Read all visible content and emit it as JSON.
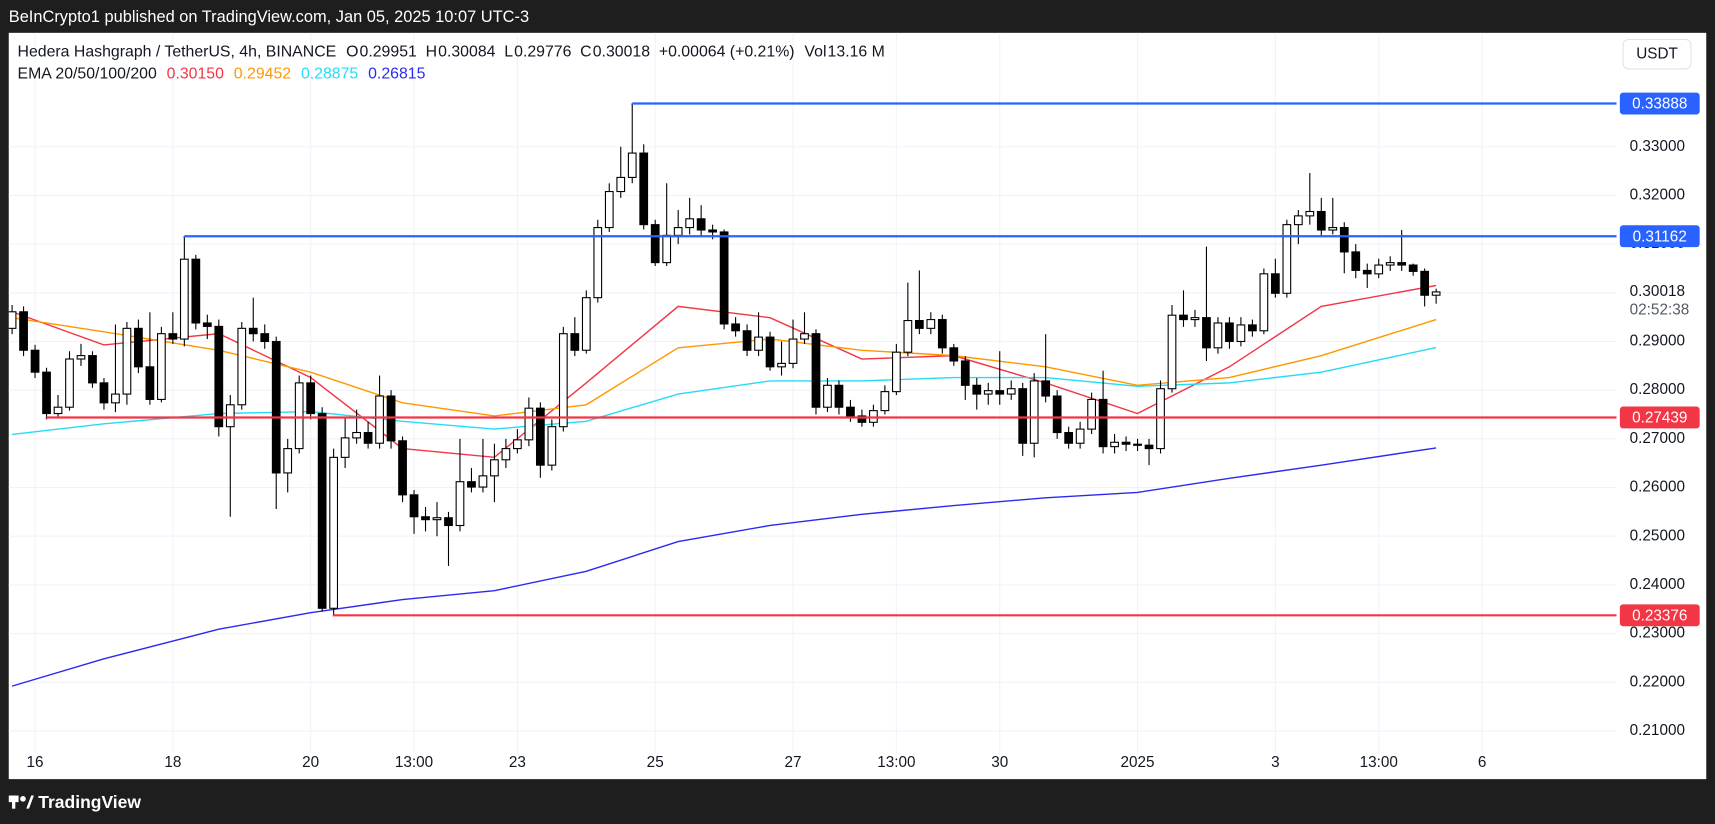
{
  "header": {
    "published": "BeInCrypto1 published on TradingView.com, Jan 05, 2025 10:07 UTC-3"
  },
  "chart_data": {
    "type": "candlestick",
    "title": "Hedera Hashgraph / TetherUS, 4h, BINANCE",
    "ohlc_letters": [
      "O",
      "H",
      "L",
      "C"
    ],
    "change": "+0.00064 (+0.21%)",
    "volume_letter": "Vol",
    "volume": "13.16 M",
    "indicator_title": "EMA 20/50/100/200",
    "currency": "USDT",
    "countdown": "02:52:38",
    "up_color": "#ffffff",
    "down_color": "#000000",
    "x": [
      -2,
      -1,
      0,
      1,
      2,
      3,
      4,
      5,
      6,
      7,
      8,
      9,
      10,
      11,
      12,
      13,
      14,
      15,
      16,
      17,
      18,
      19,
      20,
      21,
      22,
      23,
      24,
      25,
      26,
      27,
      28,
      29,
      30,
      31,
      32,
      33,
      34,
      35,
      36,
      37,
      38,
      39,
      40,
      41,
      42,
      43,
      44,
      45,
      46,
      47,
      48,
      49,
      50,
      51,
      52,
      53,
      54,
      55,
      56,
      57,
      58,
      59,
      60,
      61,
      62,
      63,
      64,
      65,
      66,
      67,
      68,
      69,
      70,
      71,
      72,
      73,
      74,
      75,
      76,
      77,
      78,
      79,
      80,
      81,
      82,
      83,
      84,
      85,
      86,
      87,
      88,
      89,
      90,
      91,
      92,
      93,
      94,
      95,
      96,
      97,
      98,
      99,
      100,
      101,
      102,
      103,
      104,
      105,
      106,
      107,
      108,
      109,
      110,
      111,
      112,
      113,
      114,
      115,
      116,
      117,
      118,
      119,
      120,
      121,
      122
    ],
    "open": [
      0.2927,
      0.2961,
      0.2882,
      0.2837,
      0.2752,
      0.2765,
      0.2864,
      0.2871,
      0.2815,
      0.2774,
      0.2792,
      0.2927,
      0.2848,
      0.2781,
      0.2916,
      0.2905,
      0.3069,
      0.2938,
      0.2931,
      0.2725,
      0.277,
      0.2927,
      0.2916,
      0.29,
      0.263,
      0.268,
      0.2815,
      0.2752,
      0.2352,
      0.2662,
      0.2702,
      0.2713,
      0.2691,
      0.2788,
      0.2696,
      0.2585,
      0.254,
      0.2534,
      0.2538,
      0.2522,
      0.2612,
      0.2601,
      0.2624,
      0.2657,
      0.268,
      0.2698,
      0.2763,
      0.2646,
      0.2725,
      0.2916,
      0.2882,
      0.299,
      0.3134,
      0.3208,
      0.3237,
      0.3287,
      0.314,
      0.3062,
      0.3118,
      0.3134,
      0.3152,
      0.3129,
      0.3125,
      0.2936,
      0.2922,
      0.2882,
      0.2909,
      0.2848,
      0.2855,
      0.2905,
      0.2916,
      0.2765,
      0.281,
      0.2765,
      0.2747,
      0.2734,
      0.2758,
      0.2797,
      0.2878,
      0.2943,
      0.2927,
      0.2945,
      0.2887,
      0.286,
      0.281,
      0.2792,
      0.2799,
      0.2792,
      0.2803,
      0.2691,
      0.2819,
      0.2788,
      0.2713,
      0.2691,
      0.272,
      0.2781,
      0.2684,
      0.2693,
      0.2689,
      0.2687,
      0.268,
      0.2803,
      0.2954,
      0.2945,
      0.2949,
      0.2887,
      0.2938,
      0.29,
      0.2934,
      0.2922,
      0.3039,
      0.2999,
      0.314,
      0.3158,
      0.3167,
      0.3129,
      0.3134,
      0.3084,
      0.3046,
      0.3039,
      0.3057,
      0.3062,
      0.3057,
      0.3044,
      0.29951
    ],
    "high": [
      0.2975,
      0.2972,
      0.2893,
      0.2846,
      0.279,
      0.288,
      0.2895,
      0.288,
      0.2825,
      0.2935,
      0.294,
      0.2945,
      0.296,
      0.293,
      0.296,
      0.3116,
      0.3078,
      0.2955,
      0.2945,
      0.279,
      0.294,
      0.299,
      0.2935,
      0.291,
      0.27,
      0.283,
      0.283,
      0.2765,
      0.268,
      0.2745,
      0.276,
      0.2735,
      0.283,
      0.28,
      0.2705,
      0.2595,
      0.256,
      0.257,
      0.255,
      0.27,
      0.264,
      0.27,
      0.269,
      0.27,
      0.272,
      0.2785,
      0.2775,
      0.274,
      0.293,
      0.295,
      0.3005,
      0.315,
      0.3225,
      0.33,
      0.3389,
      0.3305,
      0.315,
      0.3225,
      0.317,
      0.3195,
      0.318,
      0.314,
      0.313,
      0.295,
      0.2935,
      0.296,
      0.292,
      0.29,
      0.2945,
      0.296,
      0.2925,
      0.2825,
      0.282,
      0.278,
      0.276,
      0.277,
      0.281,
      0.2895,
      0.3021,
      0.3046,
      0.296,
      0.2955,
      0.2895,
      0.287,
      0.2825,
      0.2815,
      0.288,
      0.282,
      0.2815,
      0.2835,
      0.2915,
      0.28,
      0.2725,
      0.2735,
      0.2795,
      0.284,
      0.271,
      0.2705,
      0.27,
      0.27,
      0.282,
      0.2975,
      0.3005,
      0.2965,
      0.3095,
      0.295,
      0.295,
      0.295,
      0.2945,
      0.305,
      0.307,
      0.315,
      0.317,
      0.3246,
      0.3195,
      0.3195,
      0.3145,
      0.31,
      0.306,
      0.307,
      0.3075,
      0.3129,
      0.306,
      0.305,
      0.30084
    ],
    "low": [
      0.2915,
      0.287,
      0.2825,
      0.274,
      0.2745,
      0.2758,
      0.285,
      0.2805,
      0.276,
      0.2755,
      0.277,
      0.2835,
      0.277,
      0.2775,
      0.2895,
      0.289,
      0.2925,
      0.2905,
      0.2705,
      0.254,
      0.276,
      0.29,
      0.2885,
      0.2556,
      0.259,
      0.267,
      0.274,
      0.2345,
      0.2338,
      0.264,
      0.269,
      0.268,
      0.268,
      0.268,
      0.257,
      0.2505,
      0.251,
      0.25,
      0.2439,
      0.251,
      0.259,
      0.259,
      0.257,
      0.264,
      0.267,
      0.2685,
      0.262,
      0.2635,
      0.2715,
      0.287,
      0.2875,
      0.298,
      0.3125,
      0.3195,
      0.3225,
      0.313,
      0.3055,
      0.3055,
      0.31,
      0.312,
      0.3115,
      0.311,
      0.2925,
      0.291,
      0.287,
      0.287,
      0.284,
      0.283,
      0.2845,
      0.2895,
      0.275,
      0.2755,
      0.275,
      0.2735,
      0.2725,
      0.2725,
      0.275,
      0.279,
      0.287,
      0.2915,
      0.2915,
      0.2875,
      0.285,
      0.278,
      0.276,
      0.277,
      0.277,
      0.278,
      0.2665,
      0.2662,
      0.2775,
      0.27,
      0.268,
      0.268,
      0.271,
      0.267,
      0.267,
      0.2675,
      0.2675,
      0.2646,
      0.267,
      0.2795,
      0.293,
      0.293,
      0.286,
      0.2875,
      0.2885,
      0.289,
      0.291,
      0.2915,
      0.299,
      0.299,
      0.31,
      0.314,
      0.3115,
      0.312,
      0.304,
      0.303,
      0.301,
      0.303,
      0.3045,
      0.3045,
      0.3035,
      0.2972,
      0.29776
    ],
    "close": [
      0.2961,
      0.2882,
      0.2837,
      0.2752,
      0.2765,
      0.2864,
      0.2871,
      0.2815,
      0.2774,
      0.2792,
      0.2927,
      0.2848,
      0.2781,
      0.2916,
      0.2905,
      0.3069,
      0.2938,
      0.2931,
      0.2725,
      0.277,
      0.2927,
      0.2916,
      0.29,
      0.263,
      0.268,
      0.2815,
      0.2752,
      0.2352,
      0.2662,
      0.2702,
      0.2713,
      0.2691,
      0.2788,
      0.2696,
      0.2585,
      0.254,
      0.2534,
      0.2538,
      0.2522,
      0.2612,
      0.2601,
      0.2624,
      0.2657,
      0.268,
      0.2698,
      0.2763,
      0.2646,
      0.2725,
      0.2916,
      0.2882,
      0.299,
      0.3134,
      0.3208,
      0.3237,
      0.3287,
      0.314,
      0.3062,
      0.3118,
      0.3134,
      0.3152,
      0.3129,
      0.3125,
      0.2936,
      0.2922,
      0.2882,
      0.2909,
      0.2848,
      0.2855,
      0.2905,
      0.2916,
      0.2765,
      0.281,
      0.2765,
      0.2747,
      0.2734,
      0.2758,
      0.2797,
      0.2878,
      0.2943,
      0.2927,
      0.2945,
      0.2887,
      0.286,
      0.281,
      0.2792,
      0.2799,
      0.2792,
      0.2803,
      0.2691,
      0.2819,
      0.2788,
      0.2713,
      0.2691,
      0.272,
      0.2781,
      0.2684,
      0.2693,
      0.2689,
      0.2687,
      0.268,
      0.2803,
      0.2954,
      0.2945,
      0.2949,
      0.2887,
      0.2938,
      0.29,
      0.2934,
      0.2922,
      0.3039,
      0.2999,
      0.314,
      0.3158,
      0.3167,
      0.3129,
      0.3134,
      0.3084,
      0.3046,
      0.3039,
      0.3057,
      0.3062,
      0.3057,
      0.3044,
      0.2995,
      0.30018
    ],
    "lines": [
      {
        "color": "#f23645",
        "legend_label": "0.30150",
        "x": [
          -2,
          6,
          16,
          24,
          32,
          40,
          48,
          56,
          64,
          72,
          80,
          88,
          96,
          104,
          112,
          122
        ],
        "values": [
          0.2961,
          0.2893,
          0.2916,
          0.2826,
          0.268,
          0.2662,
          0.2815,
          0.2972,
          0.2949,
          0.2864,
          0.2871,
          0.2815,
          0.2752,
          0.2848,
          0.2972,
          0.3015
        ]
      },
      {
        "color": "#ff9800",
        "legend_label": "0.29452",
        "x": [
          -2,
          6,
          16,
          24,
          32,
          40,
          48,
          56,
          64,
          72,
          80,
          88,
          96,
          104,
          112,
          122
        ],
        "values": [
          0.2949,
          0.292,
          0.2882,
          0.2837,
          0.2774,
          0.2747,
          0.277,
          0.2887,
          0.2905,
          0.2882,
          0.2871,
          0.2848,
          0.281,
          0.2826,
          0.2871,
          0.29452
        ]
      },
      {
        "color": "#26dcf5",
        "legend_label": "0.28875",
        "x": [
          -2,
          6,
          16,
          24,
          32,
          40,
          48,
          56,
          64,
          72,
          80,
          88,
          96,
          104,
          112,
          122
        ],
        "values": [
          0.2709,
          0.2731,
          0.2752,
          0.2756,
          0.2736,
          0.272,
          0.2736,
          0.2792,
          0.2819,
          0.2819,
          0.2826,
          0.2826,
          0.2808,
          0.2815,
          0.2837,
          0.28875
        ]
      },
      {
        "color": "#2b2bf0",
        "legend_label": "0.26815",
        "x": [
          -2,
          6,
          16,
          24,
          32,
          40,
          48,
          56,
          64,
          72,
          80,
          88,
          96,
          104,
          112,
          122
        ],
        "values": [
          0.2192,
          0.2248,
          0.2309,
          0.2343,
          0.237,
          0.2388,
          0.2428,
          0.2489,
          0.2522,
          0.2545,
          0.2563,
          0.2579,
          0.259,
          0.2619,
          0.2646,
          0.26815
        ]
      }
    ],
    "levels": [
      {
        "value": 0.33888,
        "color": "#2962ff",
        "from_x": 52
      },
      {
        "value": 0.31162,
        "color": "#2962ff",
        "from_x": 13
      },
      {
        "value": 0.27439,
        "color": "#f23645",
        "from_x": 1
      },
      {
        "value": 0.23376,
        "color": "#f23645",
        "from_x": 26
      }
    ],
    "xlim": [
      -2.29,
      137.71
    ],
    "xticks": [
      {
        "value": 0,
        "label": "16"
      },
      {
        "value": 12,
        "label": "18"
      },
      {
        "value": 24,
        "label": "20"
      },
      {
        "value": 33,
        "label": "13:00"
      },
      {
        "value": 42,
        "label": "23"
      },
      {
        "value": 54,
        "label": "25"
      },
      {
        "value": 66,
        "label": "27"
      },
      {
        "value": 75,
        "label": "13:00"
      },
      {
        "value": 84,
        "label": "30"
      },
      {
        "value": 96,
        "label": "2025"
      },
      {
        "value": 108,
        "label": "3"
      },
      {
        "value": 117,
        "label": "13:00"
      },
      {
        "value": 126,
        "label": "6"
      }
    ],
    "ylim": [
      0.2055,
      0.3534
    ],
    "yticks": [
      {
        "value": 0.21,
        "label": "0.21000"
      },
      {
        "value": 0.22,
        "label": "0.22000"
      },
      {
        "value": 0.23,
        "label": "0.23000"
      },
      {
        "value": 0.24,
        "label": "0.24000"
      },
      {
        "value": 0.25,
        "label": "0.25000"
      },
      {
        "value": 0.26,
        "label": "0.26000"
      },
      {
        "value": 0.27,
        "label": "0.27000"
      },
      {
        "value": 0.28,
        "label": "0.28000"
      },
      {
        "value": 0.29,
        "label": "0.29000"
      },
      {
        "value": 0.3,
        "label": "0.30000"
      },
      {
        "value": 0.31,
        "label": "0.31000"
      },
      {
        "value": 0.32,
        "label": "0.32000"
      },
      {
        "value": 0.33,
        "label": "0.33000"
      }
    ],
    "grid": true
  },
  "footer": {
    "brand": "TradingView"
  }
}
